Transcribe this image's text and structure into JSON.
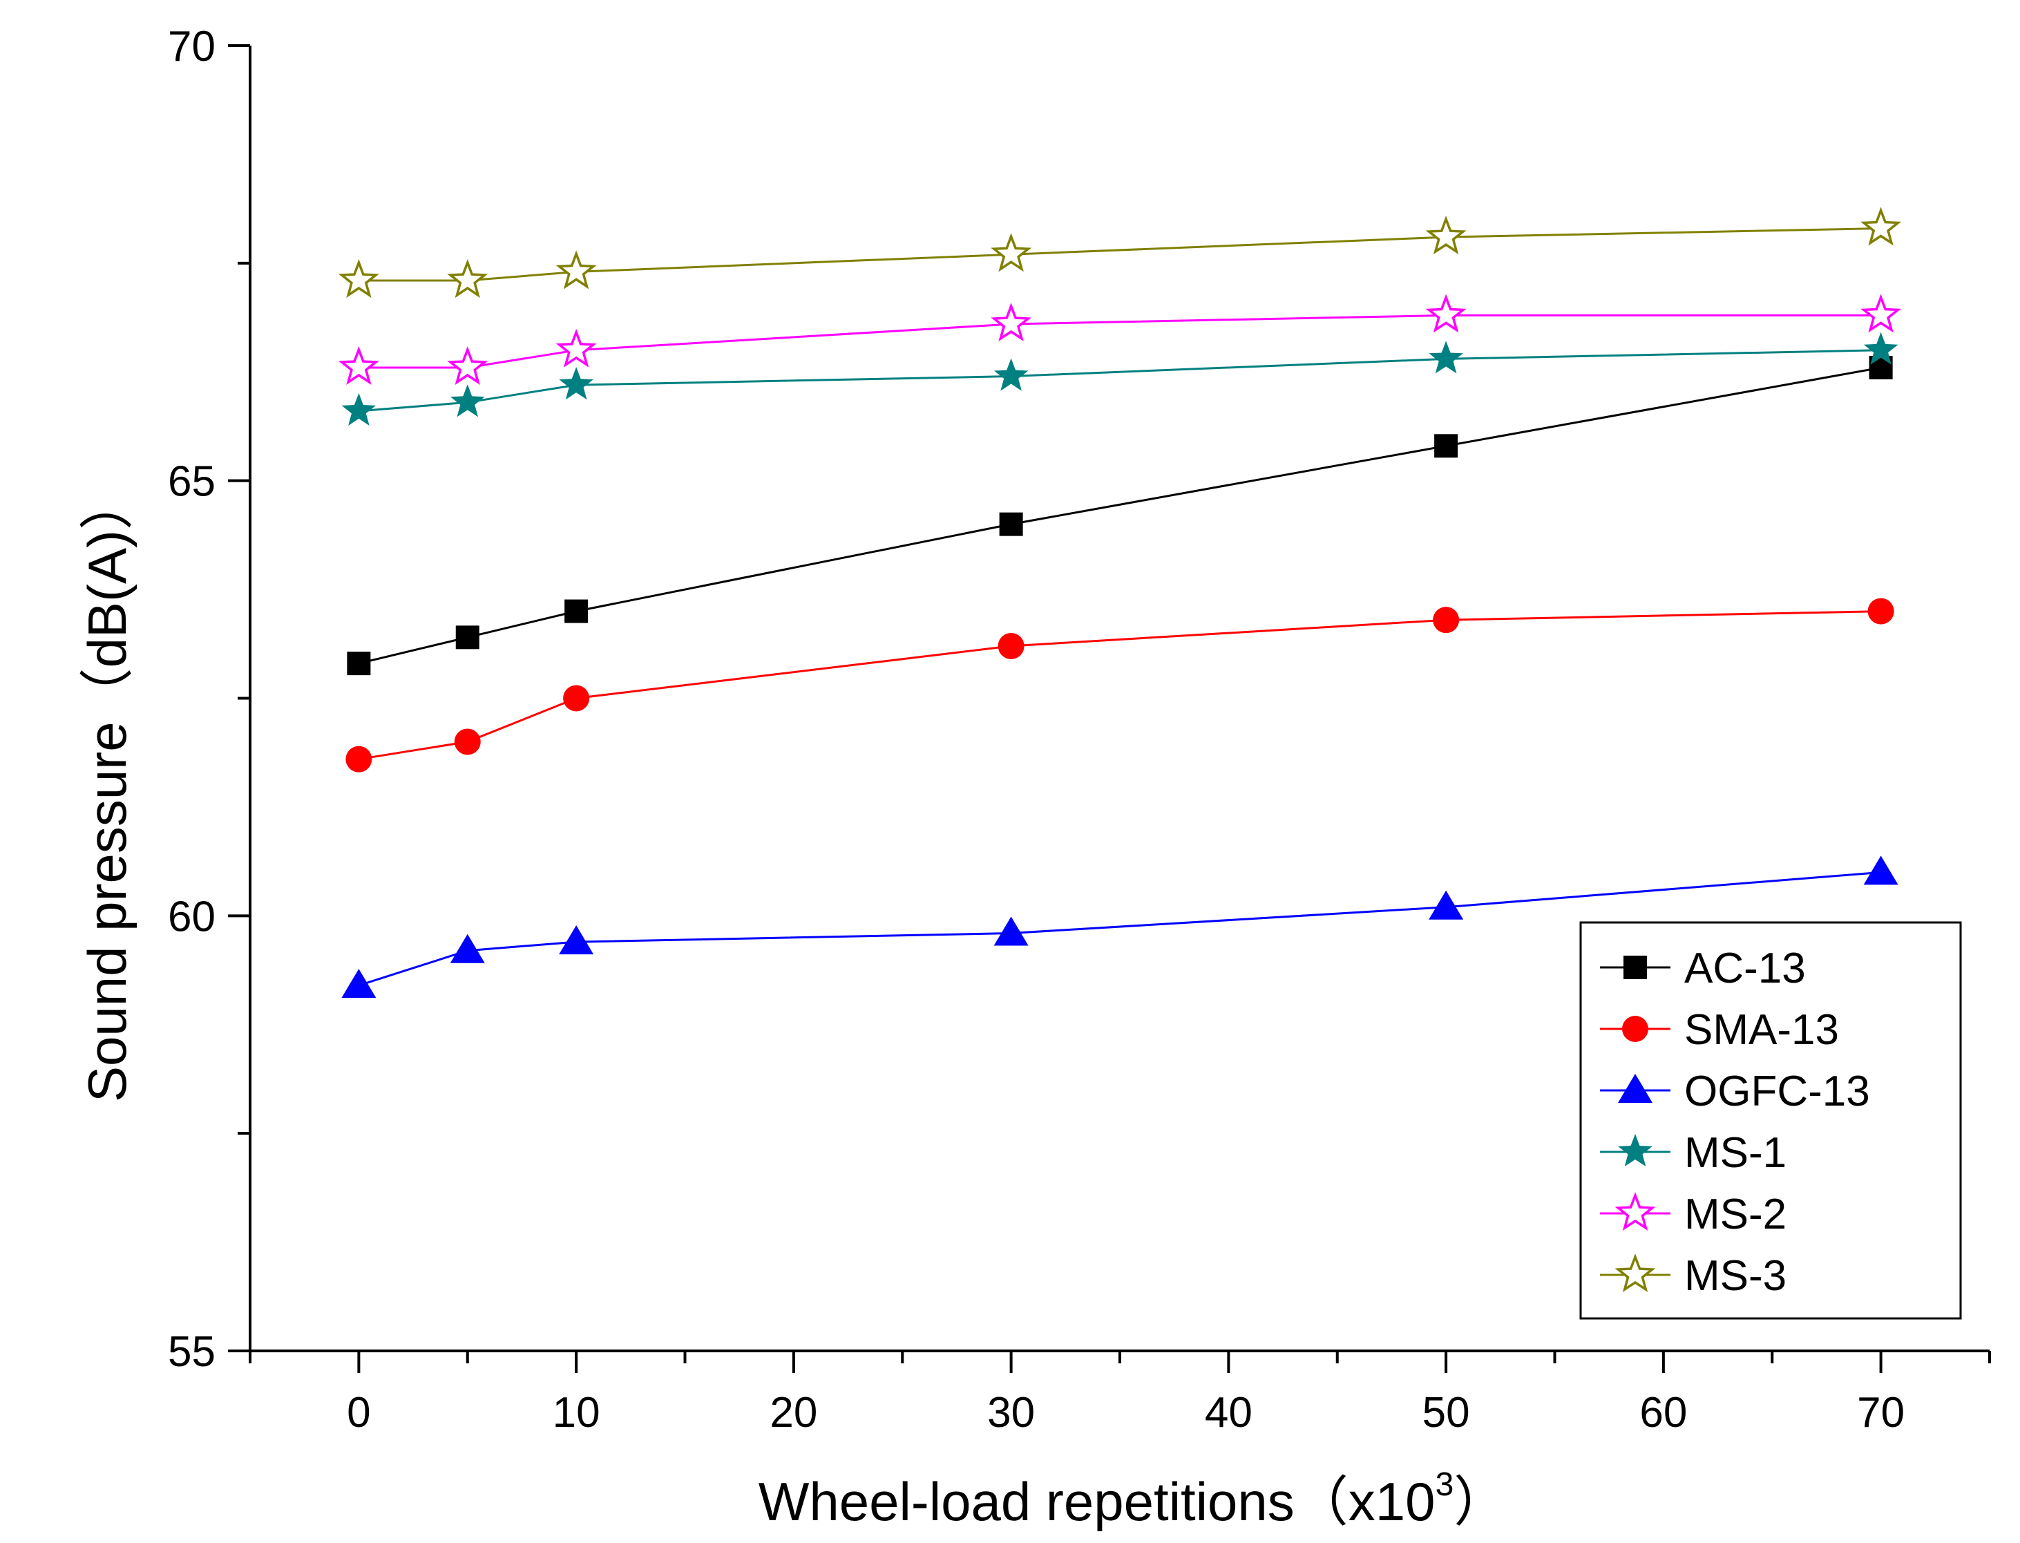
{
  "chart_data": {
    "type": "line",
    "title": "",
    "xlabel": "Wheel-load repetitions（x10",
    "xlabel_sup": "3",
    "xlabel_close": "）",
    "ylabel": "Sound pressure（dB(A)）",
    "xlim": [
      -5,
      75
    ],
    "ylim": [
      55,
      70
    ],
    "xticks": [
      0,
      10,
      20,
      30,
      40,
      50,
      60,
      70
    ],
    "xtick_labels": [
      "0",
      "10",
      "20",
      "30",
      "40",
      "50",
      "60",
      "70"
    ],
    "yticks": [
      55,
      60,
      65,
      70
    ],
    "ytick_labels": [
      "55",
      "60",
      "65",
      "70"
    ],
    "x": [
      0,
      5,
      10,
      30,
      50,
      70
    ],
    "grid": false,
    "legend_position": "bottom-right",
    "series": [
      {
        "name": "AC-13",
        "marker": "square",
        "color": "#000000",
        "values": [
          62.9,
          63.2,
          63.5,
          64.5,
          65.4,
          66.3
        ]
      },
      {
        "name": "SMA-13",
        "marker": "circle",
        "color": "#ff0000",
        "values": [
          61.8,
          62.0,
          62.5,
          63.1,
          63.4,
          63.5
        ]
      },
      {
        "name": "OGFC-13",
        "marker": "triangle",
        "color": "#0000ff",
        "values": [
          59.2,
          59.6,
          59.7,
          59.8,
          60.1,
          60.5
        ]
      },
      {
        "name": "MS-1",
        "marker": "star-filled",
        "color": "#008080",
        "values": [
          65.8,
          65.9,
          66.1,
          66.2,
          66.4,
          66.5
        ]
      },
      {
        "name": "MS-2",
        "marker": "star-open",
        "color": "#ff00ff",
        "values": [
          66.3,
          66.3,
          66.5,
          66.8,
          66.9,
          66.9
        ]
      },
      {
        "name": "MS-3",
        "marker": "star-open",
        "color": "#808000",
        "values": [
          67.3,
          67.3,
          67.4,
          67.6,
          67.8,
          67.9
        ]
      }
    ]
  }
}
